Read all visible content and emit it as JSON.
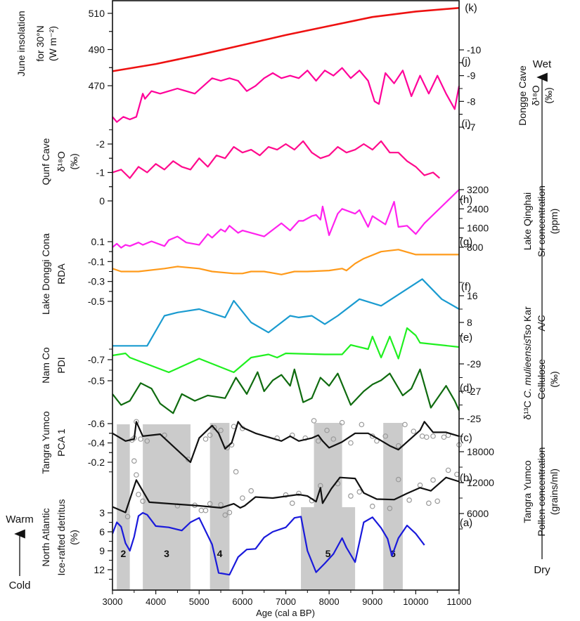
{
  "chart_data": {
    "type": "line",
    "title": "",
    "xlabel": "Age (cal a BP)",
    "xlim": [
      3000,
      11000
    ],
    "x_ticks": [
      3000,
      4000,
      5000,
      6000,
      7000,
      8000,
      9000,
      10000,
      11000
    ],
    "annotations": {
      "wet": "Wet",
      "dry": "Dry",
      "warm": "Warm",
      "cold": "Cold"
    },
    "shaded_events": [
      {
        "label": "2",
        "start": 3100,
        "end": 3400
      },
      {
        "label": "3",
        "start": 3700,
        "end": 4800
      },
      {
        "label": "4",
        "start": 5250,
        "end": 5700
      },
      {
        "label": "5",
        "start": 7350,
        "end": 8600
      },
      {
        "label": "6",
        "start": 9250,
        "end": 9700
      }
    ],
    "series": [
      {
        "id": "k",
        "panel_label": "(k)",
        "name": "June insolation for 30°N",
        "ylabel": [
          "June insolation",
          "for 30°N",
          "(W m⁻²)"
        ],
        "axis_side": "left",
        "color": "#ee1111",
        "y_ticks": [
          470,
          490,
          510
        ],
        "x": [
          3000,
          4000,
          5000,
          6000,
          7000,
          8000,
          9000,
          10000,
          11000
        ],
        "values": [
          478,
          482,
          487,
          492.5,
          498,
          503,
          508,
          511,
          513
        ]
      },
      {
        "id": "j",
        "panel_label": "(j)",
        "name": "Dongge Cave δ18O",
        "ylabel": [
          "Dongge Cave",
          "δ¹⁸O",
          "(‰)"
        ],
        "axis_side": "right",
        "color": "#ff0099",
        "y_ticks": [
          -10,
          -9,
          -8,
          -7
        ],
        "x": [
          3000,
          3100,
          3250,
          3400,
          3550,
          3700,
          3750,
          3900,
          4100,
          4300,
          4500,
          4700,
          4900,
          5100,
          5300,
          5500,
          5700,
          5900,
          6100,
          6300,
          6500,
          6700,
          6900,
          7100,
          7300,
          7500,
          7700,
          7900,
          8100,
          8300,
          8500,
          8700,
          8900,
          9050,
          9150,
          9300,
          9500,
          9700,
          9900,
          10100,
          10300,
          10500,
          10700,
          10900,
          11000
        ],
        "values": [
          -7.4,
          -7.2,
          -7.4,
          -7.3,
          -7.4,
          -8.3,
          -8.1,
          -8.4,
          -8.3,
          -8.4,
          -8.5,
          -8.4,
          -8.3,
          -8.6,
          -8.9,
          -8.8,
          -8.9,
          -8.8,
          -8.4,
          -8.6,
          -8.9,
          -9.1,
          -8.9,
          -9.0,
          -8.9,
          -9.2,
          -8.8,
          -9.2,
          -9.0,
          -9.3,
          -8.9,
          -9.2,
          -8.8,
          -8.0,
          -7.9,
          -9.1,
          -8.7,
          -9.2,
          -8.2,
          -9.0,
          -8.3,
          -9.0,
          -8.3,
          -7.7,
          -8.6
        ]
      },
      {
        "id": "i",
        "panel_label": "(i)",
        "name": "Qunf Cave δ18O",
        "ylabel": [
          "Qunf Cave",
          "δ¹⁸O",
          "(‰)"
        ],
        "axis_side": "left",
        "color": "#ff0a8c",
        "y_ticks": [
          0,
          -1,
          -2
        ],
        "x": [
          3000,
          3200,
          3400,
          3600,
          3800,
          4000,
          4200,
          4400,
          4600,
          4800,
          5000,
          5200,
          5400,
          5600,
          5800,
          6000,
          6200,
          6400,
          6600,
          6800,
          7000,
          7200,
          7400,
          7600,
          7800,
          8000,
          8200,
          8400,
          8600,
          8800,
          9000,
          9200,
          9400,
          9600,
          9800,
          10000,
          10200,
          10400,
          10550
        ],
        "values": [
          -1.0,
          -1.1,
          -0.8,
          -1.2,
          -1.0,
          -1.3,
          -1.1,
          -1.4,
          -1.2,
          -1.1,
          -1.5,
          -1.2,
          -1.6,
          -1.5,
          -1.9,
          -1.7,
          -1.8,
          -1.6,
          -1.9,
          -1.8,
          -2.0,
          -1.8,
          -2.1,
          -1.7,
          -1.5,
          -1.6,
          -1.9,
          -1.7,
          -1.8,
          -2.0,
          -1.8,
          -2.1,
          -1.7,
          -1.7,
          -1.4,
          -1.2,
          -0.9,
          -1.0,
          -0.8
        ]
      },
      {
        "id": "h",
        "panel_label": "(h)",
        "name": "Lake Qinghai Sr concentration",
        "ylabel": [
          "Lake Qinghai",
          "Sr concentration",
          "(ppm)"
        ],
        "axis_side": "right",
        "color": "#ff22ee",
        "y_ticks": [
          800,
          1600,
          2400,
          3200
        ],
        "x": [
          3000,
          3100,
          3200,
          3300,
          3400,
          3600,
          3700,
          3900,
          4200,
          4300,
          4500,
          4700,
          5000,
          5200,
          5300,
          5500,
          5600,
          5700,
          5900,
          6000,
          6500,
          6900,
          7100,
          7300,
          7400,
          7600,
          7700,
          7800,
          7850,
          8000,
          8200,
          8300,
          8600,
          8700,
          8900,
          9000,
          9300,
          9500,
          9600,
          9800,
          10000,
          10200,
          11000
        ],
        "values": [
          800,
          950,
          780,
          900,
          850,
          1000,
          900,
          1050,
          850,
          1100,
          1250,
          1000,
          900,
          1350,
          1200,
          1550,
          1450,
          1700,
          1400,
          1500,
          1250,
          1800,
          1500,
          1900,
          1900,
          2100,
          2150,
          1950,
          2500,
          1300,
          2200,
          2400,
          2200,
          2350,
          1650,
          2100,
          1750,
          2700,
          1650,
          1700,
          1350,
          1800,
          3200
        ]
      },
      {
        "id": "g",
        "panel_label": "(g)",
        "name": "Lake Donggi Cona RDA",
        "ylabel": [
          "Lake Donggi Cona",
          "RDA"
        ],
        "axis_side": "left",
        "color": "#ff9a1a",
        "y_ticks": [
          0.1,
          -0.1,
          -0.3,
          -0.5
        ],
        "x": [
          3000,
          3200,
          3600,
          4200,
          4500,
          5000,
          5300,
          5800,
          6000,
          6200,
          6500,
          6900,
          7200,
          7500,
          8000,
          8300,
          8400,
          8600,
          8800,
          9200,
          9600,
          10000,
          11000
        ],
        "values": [
          -0.17,
          -0.2,
          -0.2,
          -0.17,
          -0.15,
          -0.17,
          -0.2,
          -0.22,
          -0.22,
          -0.2,
          -0.2,
          -0.23,
          -0.2,
          -0.2,
          -0.19,
          -0.17,
          -0.19,
          -0.12,
          -0.07,
          0.0,
          0.02,
          -0.03,
          -0.03
        ]
      },
      {
        "id": "f",
        "panel_label": "(f)",
        "name": "Tso Kar A/C",
        "ylabel": [
          "Tso Kar",
          "A/C"
        ],
        "axis_side": "right",
        "color": "#1a9bd0",
        "y_ticks": [
          8,
          16
        ],
        "x": [
          3000,
          3100,
          3500,
          3800,
          4200,
          4500,
          5000,
          5600,
          5800,
          6200,
          6600,
          7100,
          7300,
          7600,
          7900,
          8200,
          8700,
          9200,
          10150,
          10600,
          11000
        ],
        "values": [
          1,
          1,
          1,
          1,
          10,
          11,
          12,
          9.5,
          14.5,
          8,
          5,
          10,
          9.5,
          10,
          7.5,
          10,
          15,
          13,
          21,
          15,
          12
        ]
      },
      {
        "id": "e",
        "panel_label": "(e)",
        "name": "Nam Co PDI",
        "ylabel": [
          "Nam Co",
          "PDI"
        ],
        "axis_side": "left",
        "color": "#1ff01f",
        "y_ticks": [
          -0.7,
          -0.5
        ],
        "x": [
          3000,
          3300,
          3400,
          4300,
          5000,
          5800,
          6200,
          6600,
          6800,
          7000,
          7900,
          8300,
          8500,
          8900,
          9000,
          9200,
          9400,
          9600,
          9800,
          10000,
          10100,
          11000
        ],
        "values": [
          -0.74,
          -0.76,
          -0.72,
          -0.58,
          -0.71,
          -0.58,
          -0.72,
          -0.75,
          -0.72,
          -0.76,
          -0.75,
          -0.75,
          -0.84,
          -0.8,
          -0.92,
          -0.72,
          -0.92,
          -0.71,
          -1.0,
          -0.93,
          -0.86,
          -0.82
        ]
      },
      {
        "id": "d",
        "panel_label": "(d)",
        "name": "δ13C C. mulieensis Cellulose",
        "ylabel": [
          "δ¹³C C. mulieensis",
          "Cellulose",
          "(‰)"
        ],
        "axis_side": "right",
        "color": "#0f6b0f",
        "y_ticks": [
          -29,
          -27,
          -25
        ],
        "x": [
          3000,
          3200,
          3400,
          3650,
          3900,
          4100,
          4400,
          4600,
          4900,
          5200,
          5600,
          5850,
          6100,
          6350,
          6500,
          6700,
          6900,
          7100,
          7200,
          7400,
          7600,
          7800,
          8000,
          8200,
          8500,
          8800,
          9000,
          9200,
          9400,
          9700,
          9900,
          10100,
          10350,
          10700,
          10900,
          11000
        ],
        "values": [
          -26.8,
          -26.0,
          -26.3,
          -27.6,
          -27.2,
          -26.1,
          -25.4,
          -26.8,
          -26.3,
          -26.7,
          -26.5,
          -28.0,
          -26.8,
          -28.4,
          -27.0,
          -27.8,
          -28.2,
          -27.4,
          -28.6,
          -26.2,
          -26.5,
          -28.0,
          -27.4,
          -28.3,
          -26.0,
          -27.0,
          -27.5,
          -27.8,
          -28.3,
          -26.7,
          -27.2,
          -28.6,
          -25.8,
          -27.4,
          -26.3,
          -25.6
        ]
      },
      {
        "id": "c",
        "panel_label": "(c)",
        "name": "Tangra Yumco PCA 1",
        "ylabel": [
          "Tangra Yumco",
          "PCA 1"
        ],
        "axis_side": "left",
        "color": "#111111",
        "y_ticks": [
          -0.6,
          -0.4,
          -0.2
        ],
        "x": [
          3000,
          3300,
          3500,
          3550,
          3700,
          4100,
          4800,
          5000,
          5300,
          5450,
          5600,
          5750,
          5900,
          6000,
          6300,
          6900,
          7100,
          7300,
          7600,
          7750,
          7850,
          8000,
          8300,
          8600,
          8900,
          9100,
          9400,
          9600,
          10100,
          10200,
          10400,
          10700,
          11000
        ],
        "values": [
          -0.5,
          -0.42,
          -0.44,
          -0.62,
          -0.47,
          -0.49,
          -0.2,
          -0.45,
          -0.58,
          -0.5,
          -0.34,
          -0.4,
          -0.62,
          -0.56,
          -0.5,
          -0.42,
          -0.47,
          -0.42,
          -0.45,
          -0.48,
          -0.42,
          -0.35,
          -0.41,
          -0.5,
          -0.5,
          -0.45,
          -0.37,
          -0.33,
          -0.53,
          -0.62,
          -0.51,
          -0.51,
          -0.47
        ]
      },
      {
        "id": "b",
        "panel_label": "(b)",
        "name": "Tangra Yumco Pollen concentration",
        "ylabel": [
          "Tangra Yumco",
          "Pollen concentration",
          "(grains/ml)"
        ],
        "axis_side": "right",
        "color": "#111111",
        "y_ticks": [
          6000,
          12000,
          18000
        ],
        "x": [
          3000,
          3300,
          3550,
          3850,
          5000,
          5500,
          5800,
          5950,
          6050,
          6300,
          6700,
          7300,
          7500,
          7700,
          7800,
          7850,
          8050,
          8250,
          8600,
          8800,
          9100,
          9500,
          9800,
          10100,
          10350,
          10700,
          11000
        ],
        "values": [
          7300,
          6200,
          12500,
          8200,
          7500,
          7100,
          7900,
          7100,
          7500,
          9200,
          9000,
          9700,
          9400,
          8300,
          11000,
          8000,
          10800,
          13000,
          12800,
          10000,
          8800,
          8700,
          9900,
          11000,
          10400,
          13000,
          12200
        ]
      },
      {
        "id": "a",
        "panel_label": "(a)",
        "name": "North Atlantic Ice-rafted detritus",
        "ylabel": [
          "North Atlantic",
          "Ice-rafted detritus",
          "(%)"
        ],
        "axis_side": "left",
        "color": "#1a1adb",
        "y_ticks": [
          3,
          6,
          9,
          12
        ],
        "x": [
          3000,
          3100,
          3200,
          3300,
          3400,
          3500,
          3600,
          3700,
          3800,
          4000,
          4300,
          4600,
          4800,
          5000,
          5300,
          5450,
          5700,
          5900,
          6100,
          6300,
          6500,
          6700,
          7000,
          7200,
          7350,
          7500,
          7700,
          7900,
          8100,
          8300,
          8400,
          8600,
          8800,
          9000,
          9200,
          9350,
          9450,
          9600,
          9800,
          10000,
          10200
        ],
        "values": [
          6.3,
          4.5,
          5.2,
          7.8,
          9.0,
          6.8,
          3.5,
          3.0,
          3.3,
          5.1,
          5.3,
          5.8,
          4.5,
          3.8,
          8.0,
          12.5,
          12.8,
          10.0,
          8.8,
          8.7,
          6.9,
          6.0,
          5.3,
          3.8,
          3.6,
          9.0,
          12.4,
          11.0,
          9.5,
          7.0,
          8.5,
          10.8,
          4.5,
          3.7,
          5.4,
          7.1,
          9.8,
          7.0,
          5.0,
          6.3,
          8.1
        ]
      }
    ],
    "scatter_points_c": {
      "x": [
        3450,
        3500,
        3550,
        3650,
        3800,
        4200,
        4750,
        5150,
        5250,
        5350,
        5500,
        5650,
        5750,
        5800,
        6000,
        6800,
        7150,
        7450,
        7650,
        7750,
        7950,
        8100,
        8300,
        8500,
        8750,
        9000,
        9100,
        9300,
        9600,
        9750,
        9950,
        10150,
        10250,
        10400,
        10650,
        10750,
        11000
      ],
      "values": [
        -0.43,
        -0.45,
        -0.62,
        -0.44,
        -0.42,
        -0.48,
        -0.23,
        -0.44,
        -0.48,
        -0.56,
        -0.53,
        -0.35,
        -0.38,
        -0.57,
        -0.55,
        -0.45,
        -0.48,
        -0.45,
        -0.63,
        -0.42,
        -0.53,
        -0.44,
        -0.61,
        -0.4,
        -0.59,
        -0.47,
        -0.42,
        -0.47,
        -0.37,
        -0.59,
        -0.52,
        -0.47,
        -0.46,
        -0.47,
        -0.46,
        -0.48,
        -0.38
      ]
    },
    "scatter_points_b": {
      "x": [
        3350,
        3500,
        3550,
        3600,
        3700,
        4500,
        4900,
        5050,
        5150,
        5250,
        5500,
        5600,
        5700,
        5850,
        6000,
        6200,
        7000,
        7150,
        7300,
        7600,
        7800,
        8200,
        8500,
        8700,
        9000,
        9400,
        9600,
        9850,
        10100,
        10300,
        10400,
        10500,
        10750,
        10950
      ],
      "values": [
        5400,
        16200,
        13500,
        9700,
        8400,
        7500,
        7600,
        6600,
        6600,
        7900,
        7700,
        5700,
        6200,
        14100,
        9000,
        10400,
        9600,
        8000,
        9900,
        8500,
        11400,
        11800,
        9400,
        10200,
        7400,
        7000,
        12600,
        8600,
        11500,
        8000,
        12500,
        8400,
        14400,
        13600
      ]
    }
  }
}
